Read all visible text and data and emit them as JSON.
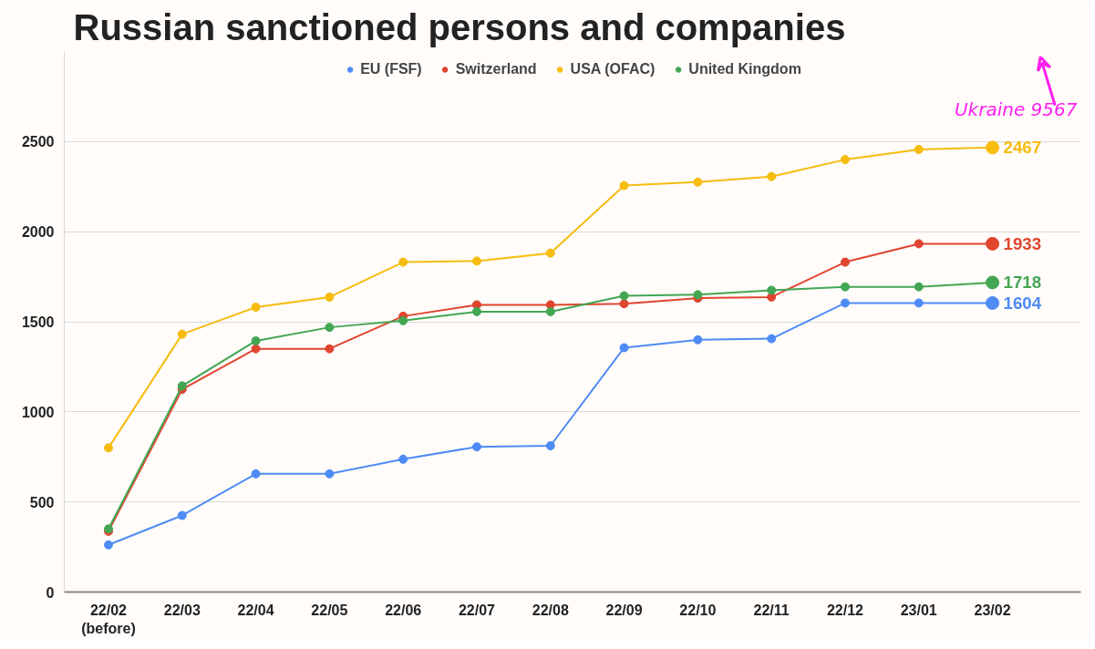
{
  "chart_data": {
    "type": "line",
    "title": "Russian sanctioned persons and companies",
    "categories": [
      "22/02\n(before)",
      "22/03",
      "22/04",
      "22/05",
      "22/06",
      "22/07",
      "22/08",
      "22/09",
      "22/10",
      "22/11",
      "22/12",
      "23/01",
      "23/02"
    ],
    "series": [
      {
        "name": "EU (FSF)",
        "color": "#4e8bf5",
        "values": [
          262,
          425,
          656,
          656,
          737,
          806,
          812,
          1356,
          1400,
          1406,
          1604,
          1604,
          1604
        ],
        "value_labels": [
          null,
          null,
          null,
          null,
          null,
          null,
          null,
          null,
          null,
          null,
          null,
          null,
          "1604"
        ]
      },
      {
        "name": "Switzerland",
        "color": "#e0452f",
        "values": [
          337,
          1125,
          1350,
          1350,
          1531,
          1594,
          1594,
          1600,
          1631,
          1637,
          1831,
          1933,
          1933
        ],
        "value_labels": [
          null,
          null,
          null,
          null,
          null,
          null,
          null,
          null,
          null,
          null,
          null,
          null,
          "1933"
        ]
      },
      {
        "name": "USA (OFAC)",
        "color": "#f6bc0e",
        "values": [
          800,
          1431,
          1581,
          1637,
          1831,
          1837,
          1881,
          2256,
          2275,
          2306,
          2400,
          2456,
          2467
        ],
        "value_labels": [
          null,
          null,
          null,
          null,
          null,
          null,
          null,
          null,
          null,
          null,
          null,
          null,
          "2467"
        ]
      },
      {
        "name": "United Kingdom",
        "color": "#43a653",
        "values": [
          350,
          1144,
          1394,
          1469,
          1506,
          1556,
          1556,
          1644,
          1650,
          1675,
          1694,
          1694,
          1718
        ],
        "value_labels": [
          null,
          null,
          null,
          null,
          null,
          null,
          null,
          null,
          null,
          null,
          null,
          null,
          "1718"
        ]
      }
    ],
    "ylim": [
      0,
      3000
    ],
    "yticks": [
      0,
      500,
      1000,
      1500,
      2000,
      2500
    ],
    "grid": "y",
    "legend": "top",
    "marker": "circle",
    "line_style": "solid",
    "annotations": [
      "Ukraine 9567"
    ]
  }
}
